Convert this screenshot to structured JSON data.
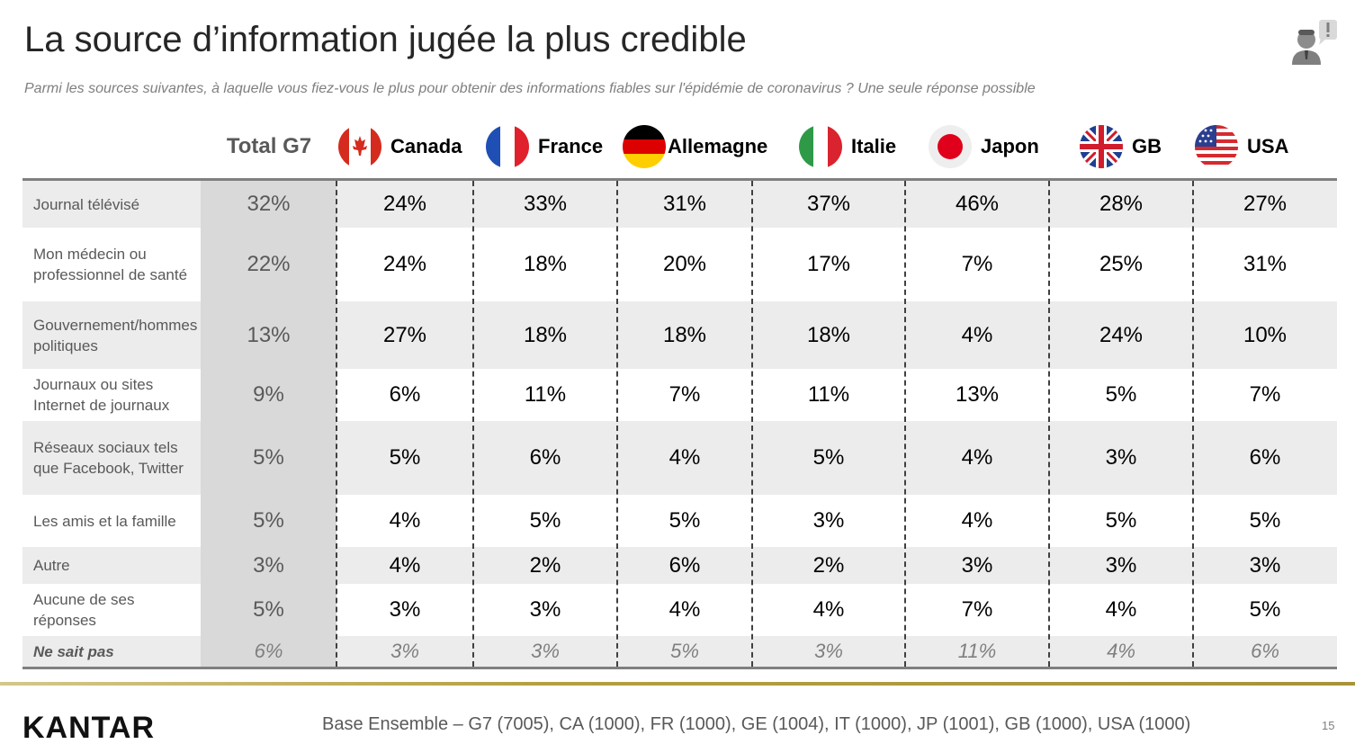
{
  "title": "La source d’information jugée la plus credible",
  "subtitle": "Parmi les sources suivantes, à laquelle vous fiez-vous le plus pour obtenir des informations fiables sur l'épidémie de coronavirus ? Une seule réponse possible",
  "colors": {
    "shade": "#ececec",
    "total_col": "#d9d9d9",
    "rule": "#7f7f7f",
    "gold": "#b5a040"
  },
  "chart_data": {
    "type": "table",
    "total_header": "Total G7",
    "columns": [
      {
        "label": "Canada",
        "flag": "canada-flag"
      },
      {
        "label": "France",
        "flag": "france-flag"
      },
      {
        "label": "Allemagne",
        "flag": "germany-flag"
      },
      {
        "label": "Italie",
        "flag": "italy-flag"
      },
      {
        "label": "Japon",
        "flag": "japan-flag"
      },
      {
        "label": "GB",
        "flag": "uk-flag"
      },
      {
        "label": "USA",
        "flag": "usa-flag"
      }
    ],
    "rows": [
      {
        "label": "Journal télévisé",
        "total": "32%",
        "values": [
          "24%",
          "33%",
          "31%",
          "37%",
          "46%",
          "28%",
          "27%"
        ]
      },
      {
        "label": "Mon médecin ou professionnel de santé",
        "total": "22%",
        "values": [
          "24%",
          "18%",
          "20%",
          "17%",
          "7%",
          "25%",
          "31%"
        ]
      },
      {
        "label": "Gouvernement/hommes politiques",
        "total": "13%",
        "values": [
          "27%",
          "18%",
          "18%",
          "18%",
          "4%",
          "24%",
          "10%"
        ]
      },
      {
        "label": "Journaux ou sites Internet de journaux",
        "total": "9%",
        "values": [
          "6%",
          "11%",
          "7%",
          "11%",
          "13%",
          "5%",
          "7%"
        ]
      },
      {
        "label": "Réseaux sociaux tels que Facebook, Twitter",
        "total": "5%",
        "values": [
          "5%",
          "6%",
          "4%",
          "5%",
          "4%",
          "3%",
          "6%"
        ]
      },
      {
        "label": "Les amis et la famille",
        "total": "5%",
        "values": [
          "4%",
          "5%",
          "5%",
          "3%",
          "4%",
          "5%",
          "5%"
        ]
      },
      {
        "label": "Autre",
        "total": "3%",
        "values": [
          "4%",
          "2%",
          "6%",
          "2%",
          "3%",
          "3%",
          "3%"
        ]
      },
      {
        "label": "Aucune de ses réponses",
        "total": "5%",
        "values": [
          "3%",
          "3%",
          "4%",
          "4%",
          "7%",
          "4%",
          "5%"
        ]
      },
      {
        "label": "Ne sait pas",
        "total": "6%",
        "values": [
          "3%",
          "3%",
          "5%",
          "3%",
          "11%",
          "4%",
          "6%"
        ],
        "italic": true
      }
    ]
  },
  "footer": {
    "logo": "KANTAR",
    "base": "Base Ensemble – G7 (7005), CA (1000), FR (1000), GE (1004), IT (1000), JP (1001), GB (1000), USA (1000)",
    "page_number": "15"
  }
}
